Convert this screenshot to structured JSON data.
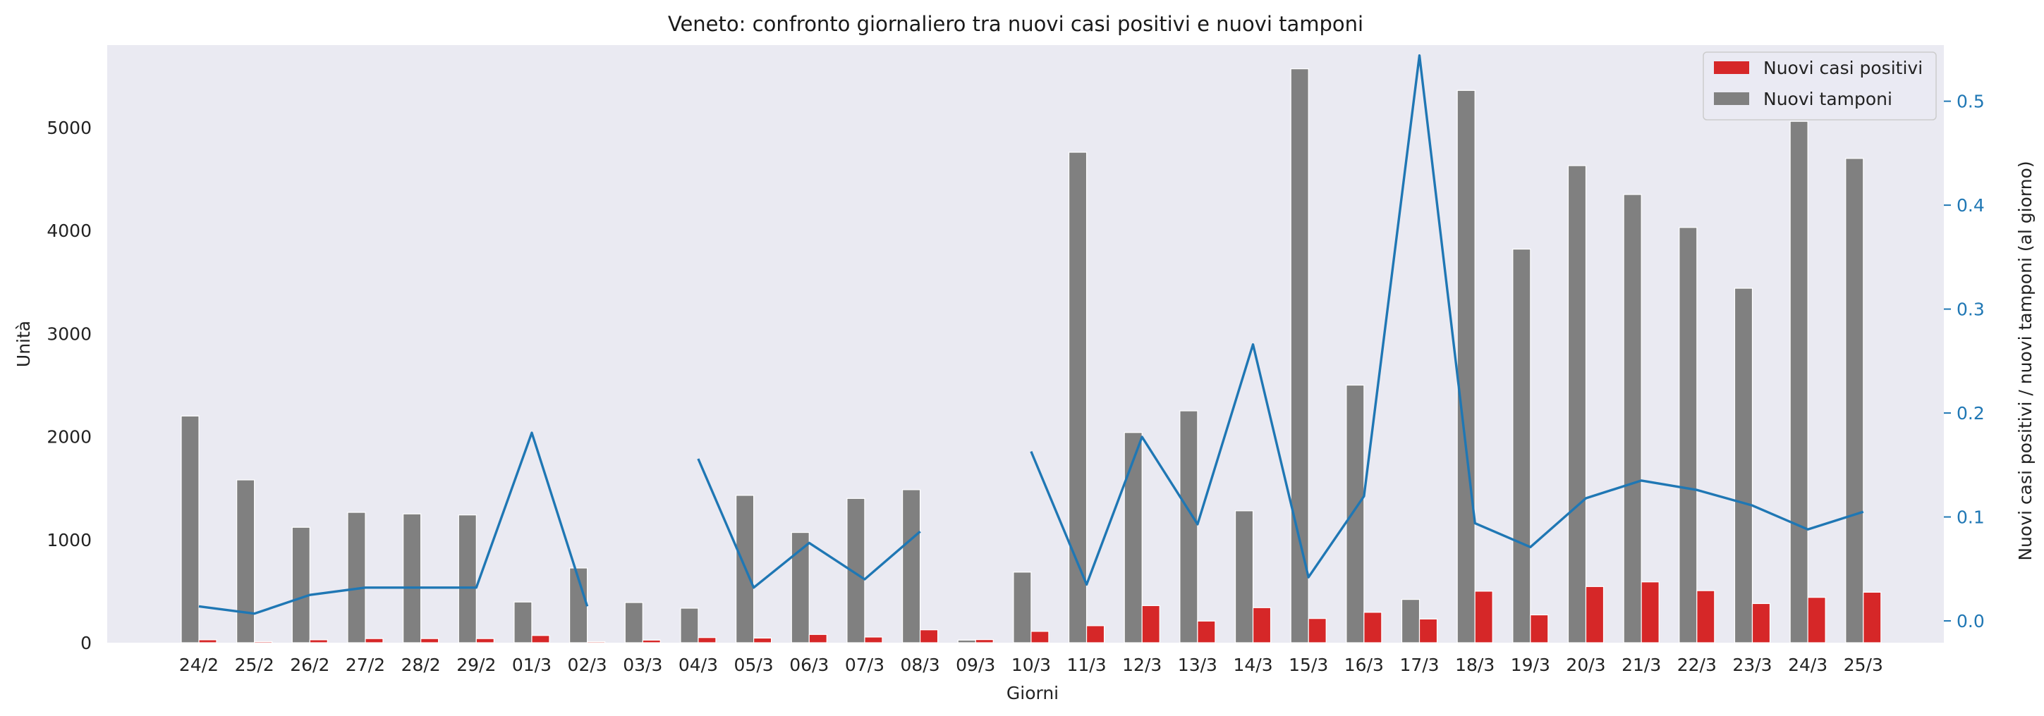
{
  "chart_data": {
    "type": "bar",
    "title": "Veneto: confronto giornaliero tra nuovi casi positivi e nuovi tamponi",
    "xlabel": "Giorni",
    "ylabel": "Unità",
    "ylabel_right": "Nuovi casi positivi / nuovi tamponi (al giorno)",
    "ylim": [
      0,
      5800
    ],
    "ylim_right": [
      -0.021,
      0.554
    ],
    "yticks": [
      "0",
      "1000",
      "2000",
      "3000",
      "4000",
      "5000"
    ],
    "yticks_right": [
      "0.0",
      "0.1",
      "0.2",
      "0.3",
      "0.4",
      "0.5"
    ],
    "categories": [
      "24/2",
      "25/2",
      "26/2",
      "27/2",
      "28/2",
      "29/2",
      "01/3",
      "02/3",
      "03/3",
      "04/3",
      "05/3",
      "06/3",
      "07/3",
      "08/3",
      "09/3",
      "10/3",
      "11/3",
      "12/3",
      "13/3",
      "14/3",
      "15/3",
      "16/3",
      "17/3",
      "18/3",
      "19/3",
      "20/3",
      "21/3",
      "22/3",
      "23/3",
      "24/3",
      "25/3"
    ],
    "series": [
      {
        "name": "Nuovi casi positivi",
        "axis": "left",
        "type": "bar",
        "color": "#d62728",
        "values": [
          28,
          11,
          28,
          40,
          40,
          40,
          70,
          10,
          25,
          50,
          45,
          80,
          55,
          125,
          30,
          110,
          165,
          360,
          210,
          340,
          235,
          295,
          230,
          500,
          270,
          545,
          590,
          505,
          380,
          440,
          490
        ]
      },
      {
        "name": "Nuovi tamponi",
        "axis": "left",
        "type": "bar",
        "color": "#808080",
        "values": [
          2200,
          1580,
          1120,
          1265,
          1250,
          1240,
          395,
          725,
          390,
          335,
          1430,
          1070,
          1400,
          1485,
          25,
          685,
          4760,
          2040,
          2250,
          1280,
          5570,
          2500,
          420,
          5360,
          3820,
          4630,
          4350,
          4030,
          3440,
          5060,
          4700
        ]
      },
      {
        "name": "",
        "axis": "right",
        "type": "line",
        "color": "#1f77b4",
        "values": [
          0.014,
          0.007,
          0.025,
          0.032,
          0.032,
          0.032,
          0.181,
          0.014,
          null,
          0.156,
          0.032,
          0.075,
          0.04,
          0.086,
          null,
          0.163,
          0.035,
          0.177,
          0.093,
          0.266,
          0.042,
          0.12,
          0.544,
          0.094,
          0.071,
          0.118,
          0.135,
          0.126,
          0.111,
          0.088,
          0.105
        ]
      }
    ],
    "legend": {
      "placement": "top-right",
      "entries": [
        "Nuovi casi positivi",
        "Nuovi tamponi"
      ]
    },
    "grid": false,
    "colors": {
      "background": "#eaeaf2",
      "right_axis": "#1f77b4"
    }
  }
}
